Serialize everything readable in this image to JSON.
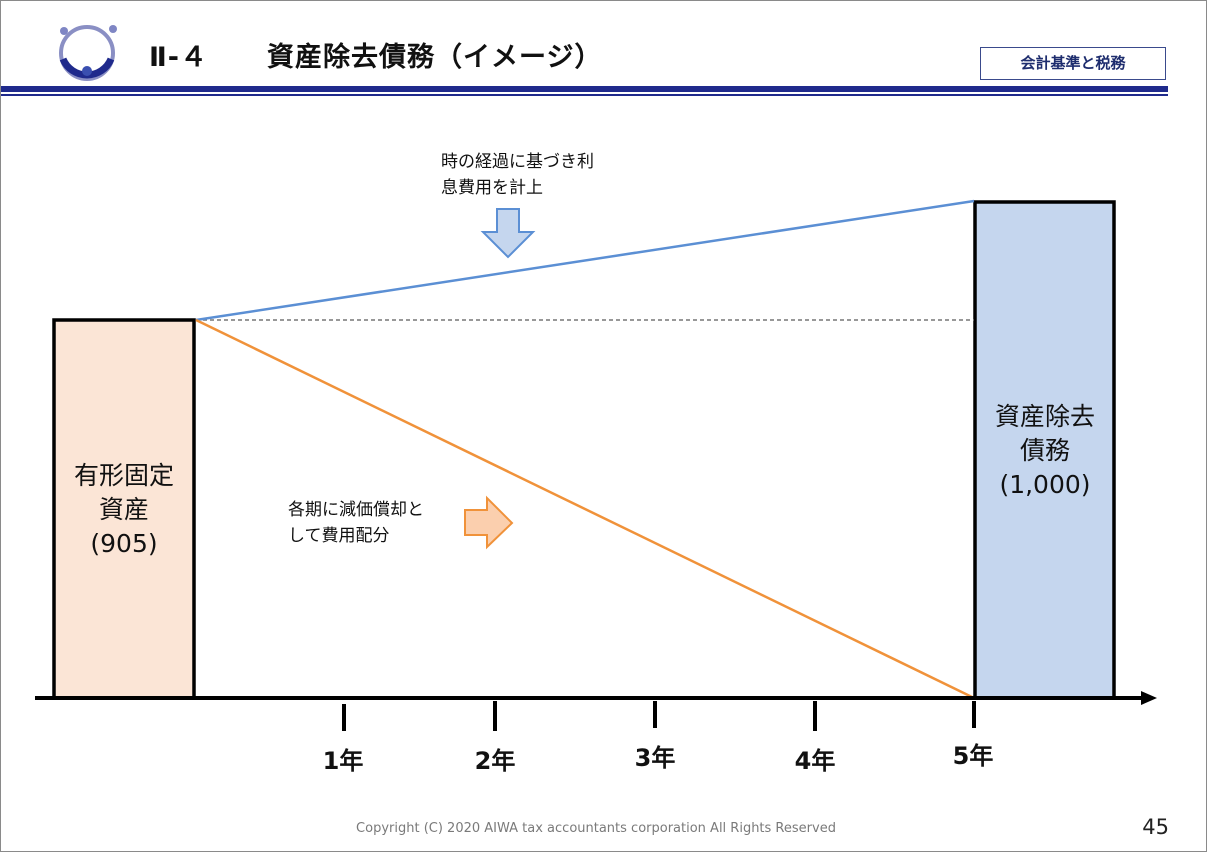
{
  "header": {
    "section_number": "Ⅱ-４",
    "title": "資産除去債務（イメージ）",
    "category": "会計基準と税務"
  },
  "diagram": {
    "asset_box": {
      "line1": "有形固定",
      "line2": "資産",
      "value": "(905)"
    },
    "aro_box": {
      "line1": "資産除去",
      "line2": "債務",
      "value": "(1,000)"
    },
    "interest_note": {
      "line1": "時の経過に基づき利",
      "line2": "息費用を計上"
    },
    "depreciation_note": {
      "line1": "各期に減価償却と",
      "line2": "して費用配分"
    },
    "timeline": [
      "1年",
      "2年",
      "3年",
      "4年",
      "5年"
    ]
  },
  "footer": {
    "copyright": "Copyright (C) 2020 AIWA tax accountants corporation All Rights Reserved",
    "page": "45"
  },
  "colors": {
    "header_navy": "#1f2a8c",
    "asset_fill": "#fbe5d6",
    "aro_fill": "#c5d6ee",
    "interest_line": "#5b8fd4",
    "depreciation_line": "#f0923a"
  }
}
